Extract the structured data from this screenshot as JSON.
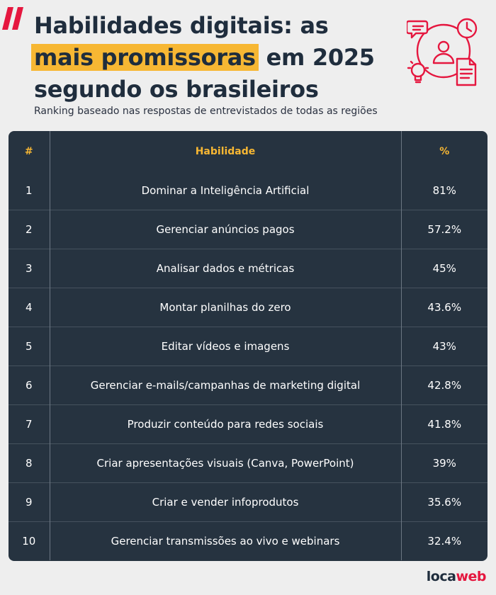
{
  "header": {
    "title_line1": "Habilidades digitais: as",
    "title_highlight": "mais promissoras",
    "title_line2_rest": " em 2025",
    "title_line3": "segundo os brasileiros",
    "subtitle": "Ranking baseado nas respostas de entrevistados de todas as regiões"
  },
  "colors": {
    "accent": "#e5173f",
    "highlight": "#f7b733",
    "table_bg": "#263340",
    "title_text": "#1f2d3d"
  },
  "icons": [
    "chat-bubble-icon",
    "clock-icon",
    "user-icon",
    "lightbulb-icon",
    "document-icon"
  ],
  "chart_data": {
    "type": "table",
    "columns": [
      "#",
      "Habilidade",
      "%"
    ],
    "rows": [
      {
        "rank": "1",
        "skill": "Dominar a Inteligência Artificial",
        "pct": "81%"
      },
      {
        "rank": "2",
        "skill": "Gerenciar anúncios pagos",
        "pct": "57.2%"
      },
      {
        "rank": "3",
        "skill": "Analisar dados e métricas",
        "pct": "45%"
      },
      {
        "rank": "4",
        "skill": "Montar planilhas do zero",
        "pct": "43.6%"
      },
      {
        "rank": "5",
        "skill": "Editar vídeos e imagens",
        "pct": "43%"
      },
      {
        "rank": "6",
        "skill": "Gerenciar e-mails/campanhas de marketing digital",
        "pct": "42.8%"
      },
      {
        "rank": "7",
        "skill": "Produzir conteúdo para redes sociais",
        "pct": "41.8%"
      },
      {
        "rank": "8",
        "skill": "Criar apresentações visuais (Canva, PowerPoint)",
        "pct": "39%"
      },
      {
        "rank": "9",
        "skill": "Criar e vender infoprodutos",
        "pct": "35.6%"
      },
      {
        "rank": "10",
        "skill": "Gerenciar transmissões ao vivo e webinars",
        "pct": "32.4%"
      }
    ]
  },
  "footer": {
    "brand_part1": "loca",
    "brand_part2": "web"
  }
}
